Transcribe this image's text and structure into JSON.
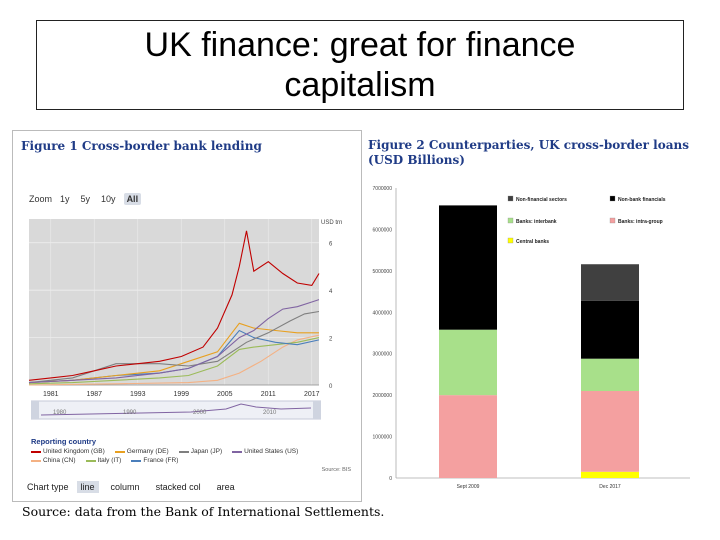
{
  "slide": {
    "title": "UK finance: great for finance capitalism",
    "source": "Source: data from the Bank of International Settlements."
  },
  "figure1": {
    "title": "Figure 1 Cross-border bank lending",
    "zoom_label": "Zoom",
    "zoom_options": [
      "1y",
      "5y",
      "10y",
      "All"
    ],
    "zoom_active": "All",
    "unit_label": "USD trn",
    "navigator_ticks": [
      "1980",
      "1990",
      "2000",
      "2010"
    ],
    "legend_heading": "Reporting country",
    "legend": [
      {
        "name": "United Kingdom (GB)",
        "color": "#c00000"
      },
      {
        "name": "Germany (DE)",
        "color": "#e8a020"
      },
      {
        "name": "Japan (JP)",
        "color": "#7f7f7f"
      },
      {
        "name": "United States (US)",
        "color": "#8064a2"
      },
      {
        "name": "China (CN)",
        "color": "#f4b183"
      },
      {
        "name": "Italy (IT)",
        "color": "#9bbb59"
      },
      {
        "name": "France (FR)",
        "color": "#4a7ebb"
      }
    ],
    "source_small": "Source: BIS",
    "chart_type_label": "Chart type",
    "chart_types": [
      "line",
      "column",
      "stacked col",
      "area"
    ],
    "chart_type_active": "line"
  },
  "chart_data": [
    {
      "type": "line",
      "title": "Figure 1 Cross-border bank lending",
      "ylabel": "USD trn",
      "x_ticks": [
        "1981",
        "1987",
        "1993",
        "1999",
        "2005",
        "2011",
        "2017"
      ],
      "xlim": [
        1978,
        2018
      ],
      "y_ticks": [
        "0",
        "2",
        "4",
        "6"
      ],
      "ylim": [
        0,
        7
      ],
      "grid": true,
      "legend_position": "bottom",
      "series": [
        {
          "name": "United Kingdom (GB)",
          "color": "#c00000",
          "x": [
            1978,
            1981,
            1984,
            1987,
            1990,
            1993,
            1996,
            1999,
            2002,
            2004,
            2006,
            2007,
            2008,
            2009,
            2011,
            2013,
            2015,
            2017,
            2018
          ],
          "y": [
            0.2,
            0.3,
            0.4,
            0.6,
            0.8,
            0.9,
            1.0,
            1.2,
            1.6,
            2.4,
            3.8,
            5.0,
            6.5,
            4.8,
            5.2,
            4.7,
            4.3,
            4.2,
            4.7
          ]
        },
        {
          "name": "United States (US)",
          "color": "#8064a2",
          "x": [
            1978,
            1984,
            1990,
            1996,
            2000,
            2004,
            2007,
            2009,
            2011,
            2013,
            2015,
            2017,
            2018
          ],
          "y": [
            0.1,
            0.2,
            0.3,
            0.5,
            0.7,
            1.2,
            2.0,
            2.3,
            2.8,
            3.2,
            3.3,
            3.5,
            3.6
          ]
        },
        {
          "name": "Japan (JP)",
          "color": "#7f7f7f",
          "x": [
            1978,
            1984,
            1990,
            1996,
            2000,
            2004,
            2008,
            2011,
            2014,
            2016,
            2018
          ],
          "y": [
            0.1,
            0.3,
            0.9,
            0.9,
            0.8,
            1.0,
            1.8,
            2.2,
            2.7,
            3.0,
            3.1
          ]
        },
        {
          "name": "Germany (DE)",
          "color": "#e8a020",
          "x": [
            1978,
            1984,
            1990,
            1996,
            2000,
            2004,
            2007,
            2009,
            2012,
            2015,
            2018
          ],
          "y": [
            0.1,
            0.2,
            0.4,
            0.6,
            1.0,
            1.4,
            2.6,
            2.4,
            2.3,
            2.2,
            2.2
          ]
        },
        {
          "name": "France (FR)",
          "color": "#4a7ebb",
          "x": [
            1978,
            1984,
            1990,
            1996,
            2000,
            2004,
            2007,
            2009,
            2012,
            2015,
            2018
          ],
          "y": [
            0.1,
            0.2,
            0.4,
            0.5,
            0.7,
            1.2,
            2.3,
            2.0,
            1.8,
            1.7,
            1.9
          ]
        },
        {
          "name": "Italy (IT)",
          "color": "#9bbb59",
          "x": [
            1978,
            1984,
            1990,
            1996,
            2000,
            2004,
            2007,
            2009,
            2012,
            2015,
            2018
          ],
          "y": [
            0.05,
            0.1,
            0.2,
            0.3,
            0.4,
            0.8,
            1.5,
            1.6,
            1.7,
            1.8,
            2.0
          ]
        },
        {
          "name": "China (CN)",
          "color": "#f4b183",
          "x": [
            1978,
            1990,
            2000,
            2004,
            2007,
            2010,
            2013,
            2015,
            2018
          ],
          "y": [
            0.0,
            0.05,
            0.1,
            0.2,
            0.5,
            1.0,
            1.6,
            1.9,
            2.1
          ]
        }
      ]
    },
    {
      "type": "stacked-bar",
      "title": "Figure 2 Counterparties, UK cross-border loans (USD Billions)",
      "categories": [
        "Sept 2009",
        "Dec 2017"
      ],
      "y_ticks": [
        "0",
        "1000000",
        "2000000",
        "3000000",
        "4000000",
        "5000000",
        "6000000",
        "7000000"
      ],
      "ylim": [
        0,
        7000000
      ],
      "legend_position": "top",
      "series": [
        {
          "name": "Central banks",
          "color": "#ffff00",
          "values": [
            0,
            150000
          ]
        },
        {
          "name": "Banks: intra-group",
          "color": "#f4a0a0",
          "values": [
            2000000,
            1950000
          ]
        },
        {
          "name": "Banks: interbank",
          "color": "#a8e08a",
          "values": [
            1580000,
            780000
          ]
        },
        {
          "name": "Non-bank financials",
          "color": "#000000",
          "values": [
            3000000,
            1400000
          ]
        },
        {
          "name": "Non-financial sectors",
          "color": "#404040",
          "values": [
            0,
            880000
          ]
        }
      ]
    }
  ]
}
